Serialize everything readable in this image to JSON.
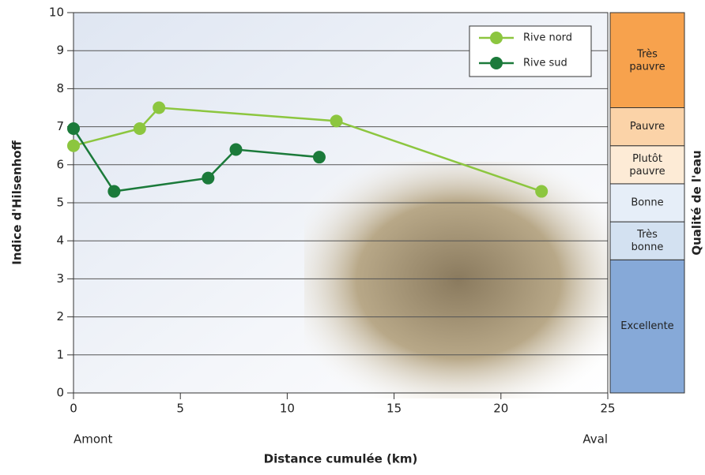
{
  "chart_data": {
    "type": "line",
    "x_label": "Distance cumulée (km)",
    "y_label": "Indice d'Hilsenhoff",
    "y2_label": "Qualité de l'eau",
    "x_annotations": [
      "Amont",
      "Aval"
    ],
    "xlim": [
      0,
      25
    ],
    "xticks": [
      0,
      5,
      10,
      15,
      20,
      25
    ],
    "ylim": [
      0,
      10
    ],
    "yticks": [
      0,
      1,
      2,
      3,
      4,
      5,
      6,
      7,
      8,
      9,
      10
    ],
    "grid": true,
    "legend": "upper right",
    "series": [
      {
        "name": "Rive nord",
        "color": "#8cc63f",
        "x": [
          0,
          3.1,
          4.0,
          12.3,
          21.9
        ],
        "values": [
          6.5,
          6.95,
          7.5,
          7.15,
          5.3
        ]
      },
      {
        "name": "Rive sud",
        "color": "#1b7a3a",
        "x": [
          0,
          1.9,
          6.3,
          7.6,
          11.5
        ],
        "values": [
          6.95,
          5.3,
          5.65,
          6.4,
          6.2
        ]
      }
    ],
    "quality_bands": [
      {
        "label": "Excellente",
        "from": 0,
        "to": 3.5,
        "color": "#86a9d8"
      },
      {
        "label": "Très bonne",
        "from": 3.5,
        "to": 4.5,
        "color": "#d3e1f1"
      },
      {
        "label": "Bonne",
        "from": 4.5,
        "to": 5.5,
        "color": "#e6eef8"
      },
      {
        "label": "Plutôt pauvre",
        "from": 5.5,
        "to": 6.5,
        "color": "#fdebd6"
      },
      {
        "label": "Pauvre",
        "from": 6.5,
        "to": 7.5,
        "color": "#fbd3a8"
      },
      {
        "label": "Très pauvre",
        "from": 7.5,
        "to": 10,
        "color": "#f7a24d"
      }
    ]
  }
}
